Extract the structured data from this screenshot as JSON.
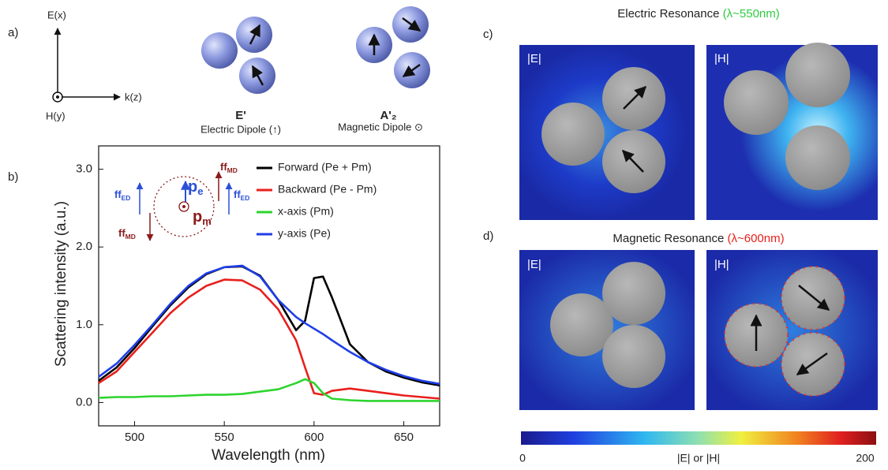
{
  "panel_a": {
    "label": "a)",
    "axis_e": "E(x)",
    "axis_k": "k(z)",
    "axis_h": "H(y)",
    "mode1": {
      "symbol": "E'",
      "caption": "Electric Dipole (↑)"
    },
    "mode2": {
      "symbol": "A'₂",
      "caption": "Magnetic Dipole ⊙"
    }
  },
  "chart_data": {
    "type": "line",
    "label": "b)",
    "x_label": "Wavelength (nm)",
    "y_label": "Scattering intensity (a.u.)",
    "x": [
      480,
      490,
      500,
      510,
      520,
      530,
      540,
      550,
      560,
      570,
      580,
      590,
      595,
      600,
      605,
      610,
      620,
      630,
      640,
      650,
      660,
      670
    ],
    "series": [
      {
        "name": "Forward (Pe + Pm)",
        "color": "#000000",
        "values": [
          0.28,
          0.45,
          0.7,
          0.98,
          1.25,
          1.48,
          1.65,
          1.74,
          1.75,
          1.63,
          1.32,
          0.93,
          1.05,
          1.6,
          1.62,
          1.35,
          0.75,
          0.52,
          0.4,
          0.32,
          0.26,
          0.22
        ]
      },
      {
        "name": "Backward (Pe - Pm)",
        "color": "#e8201c",
        "values": [
          0.25,
          0.4,
          0.65,
          0.9,
          1.15,
          1.35,
          1.5,
          1.58,
          1.57,
          1.45,
          1.2,
          0.8,
          0.45,
          0.12,
          0.1,
          0.15,
          0.18,
          0.15,
          0.12,
          0.09,
          0.07,
          0.05
        ]
      },
      {
        "name": "x-axis (Pm)",
        "color": "#2ed42e",
        "values": [
          0.06,
          0.07,
          0.07,
          0.08,
          0.08,
          0.09,
          0.1,
          0.1,
          0.11,
          0.14,
          0.17,
          0.25,
          0.3,
          0.25,
          0.12,
          0.05,
          0.03,
          0.02,
          0.02,
          0.02,
          0.02,
          0.02
        ]
      },
      {
        "name": "y-axis (Pe)",
        "color": "#1f3ee8",
        "values": [
          0.33,
          0.5,
          0.74,
          1.0,
          1.27,
          1.5,
          1.66,
          1.74,
          1.76,
          1.62,
          1.32,
          1.1,
          1.02,
          0.95,
          0.88,
          0.8,
          0.65,
          0.52,
          0.42,
          0.34,
          0.28,
          0.24
        ]
      }
    ],
    "xlim": [
      480,
      670
    ],
    "xticks": [
      500,
      550,
      600,
      650
    ],
    "ylim": [
      -0.3,
      3.3
    ],
    "yticks": [
      {
        "value": 0,
        "label": "0.0"
      },
      {
        "value": 1,
        "label": "1.0"
      },
      {
        "value": 2,
        "label": "2.0"
      },
      {
        "value": 3,
        "label": "3.0"
      }
    ],
    "annotations": [
      {
        "text": "ff",
        "sub": "ED",
        "color": "#2a50d8"
      },
      {
        "text": "p",
        "sub": "e",
        "color": "#2a50d8"
      },
      {
        "text": "p",
        "sub": "m",
        "color": "#8b1a1a"
      },
      {
        "text": "ff",
        "sub": "MD",
        "color": "#8b1a1a"
      },
      {
        "text": "ff",
        "sub": "ED",
        "color": "#2a50d8"
      },
      {
        "text": "ff",
        "sub": "MD",
        "color": "#8b1a1a"
      }
    ]
  },
  "panel_c": {
    "label": "c)",
    "title": "Electric Resonance ",
    "title_wavelength": "(λ~550nm)",
    "map1": "|E|",
    "map2": "|H|"
  },
  "panel_d": {
    "label": "d)",
    "title": "Magnetic Resonance ",
    "title_wavelength": "(λ~600nm)",
    "map1": "|E|",
    "map2": "|H|"
  },
  "colorbar": {
    "min": "0",
    "label": "|E| or |H|",
    "max": "200"
  }
}
